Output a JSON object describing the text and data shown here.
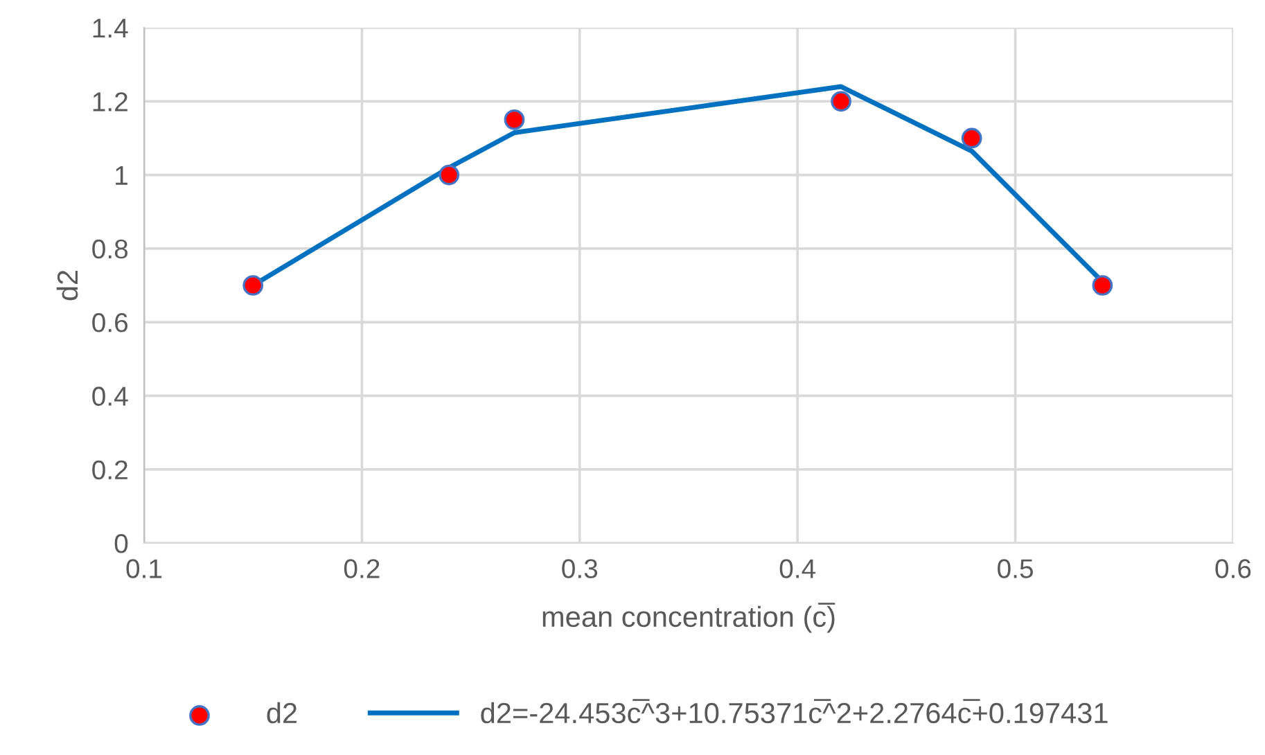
{
  "chart_data": {
    "type": "scatter",
    "xlabel": "mean concentration (c̅)",
    "ylabel": "d2",
    "xlim": [
      0.1,
      0.6
    ],
    "xticks": [
      0.1,
      0.2,
      0.3,
      0.4,
      0.5,
      0.6
    ],
    "ylim": [
      0,
      1.4
    ],
    "yticks": [
      0,
      0.2,
      0.4,
      0.6,
      0.8,
      1,
      1.2,
      1.4
    ],
    "grid": true,
    "legend": "bottom",
    "marker": "circle",
    "series": [
      {
        "name": "d2",
        "color": "#ff0000",
        "x": [
          0.15,
          0.24,
          0.27,
          0.42,
          0.48,
          0.54
        ],
        "values": [
          0.7,
          1.0,
          1.15,
          1.2,
          1.1,
          0.7
        ]
      },
      {
        "name": "d2=-24.453c̅^3+10.75371c̅^2+2.2764c̅+0.197431",
        "type": "line",
        "color": "#0070c0",
        "line_style": "solid",
        "marker": "none",
        "x": [
          0.15,
          0.24,
          0.27,
          0.42,
          0.48,
          0.54
        ],
        "values": [
          0.7,
          1.02,
          1.115,
          1.24,
          1.065,
          0.71
        ]
      }
    ]
  }
}
